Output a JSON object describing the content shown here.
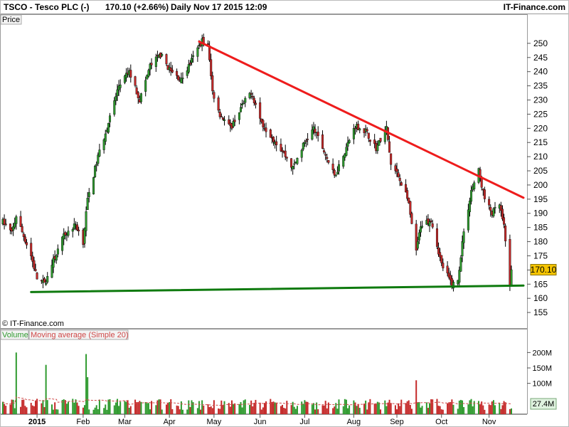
{
  "header": {
    "symbol": "TSCO - Tesco PLC (-)",
    "quote": "170.10 (+2.66%)",
    "period": "Daily",
    "timestamp": "Nov 17 2015 12:09",
    "brand": "IT-Finance.com"
  },
  "price_panel": {
    "label": "Price",
    "copyright": "© IT-Finance.com",
    "last_price_tag": "170.10"
  },
  "volume_panel": {
    "label_volume": "Volume",
    "label_ma": "Moving average (Simple 20)",
    "last_value_tag": "27.4M"
  },
  "colors": {
    "up": "#2e9a2e",
    "down": "#c42828",
    "resistance": "#ee1c1c",
    "support": "#0e7a0e",
    "price_tag": "#f5c400",
    "volume_tag": "#dff2df",
    "ma_line": "#d04848"
  },
  "chart_data": [
    {
      "type": "candlestick",
      "title": "TSCO - Tesco PLC (-)",
      "ylabel": "Price",
      "ylim": [
        151,
        256
      ],
      "yticks": [
        155,
        160,
        165,
        170,
        175,
        180,
        185,
        190,
        195,
        200,
        205,
        210,
        215,
        220,
        225,
        230,
        235,
        240,
        245,
        250
      ],
      "xtick_labels": [
        "2015",
        "Feb",
        "Mar",
        "Apr",
        "May",
        "Jun",
        "Jul",
        "Aug",
        "Sep",
        "Oct",
        "Nov"
      ],
      "xtick_dates": [
        "2015-01-02",
        "2015-02-02",
        "2015-03-02",
        "2015-04-01",
        "2015-05-01",
        "2015-06-01",
        "2015-07-01",
        "2015-08-03",
        "2015-09-01",
        "2015-10-01",
        "2015-11-02"
      ],
      "x_start": "2014-12-10",
      "x_end": "2015-11-17",
      "grid": false,
      "close_path": [
        [
          "2014-12-10",
          187
        ],
        [
          "2014-12-16",
          183
        ],
        [
          "2014-12-19",
          189
        ],
        [
          "2014-12-29",
          175
        ],
        [
          "2015-01-02",
          167
        ],
        [
          "2015-01-07",
          165
        ],
        [
          "2015-01-12",
          172
        ],
        [
          "2015-01-20",
          182
        ],
        [
          "2015-01-28",
          186
        ],
        [
          "2015-02-02",
          180
        ],
        [
          "2015-02-05",
          195
        ],
        [
          "2015-02-12",
          210
        ],
        [
          "2015-02-19",
          222
        ],
        [
          "2015-02-26",
          235
        ],
        [
          "2015-03-05",
          240
        ],
        [
          "2015-03-12",
          230
        ],
        [
          "2015-03-19",
          242
        ],
        [
          "2015-03-26",
          246
        ],
        [
          "2015-04-02",
          240
        ],
        [
          "2015-04-09",
          237
        ],
        [
          "2015-04-16",
          244
        ],
        [
          "2015-04-23",
          251
        ],
        [
          "2015-04-27",
          249
        ],
        [
          "2015-04-30",
          233
        ],
        [
          "2015-05-05",
          225
        ],
        [
          "2015-05-12",
          220
        ],
        [
          "2015-05-19",
          227
        ],
        [
          "2015-05-26",
          233
        ],
        [
          "2015-06-02",
          222
        ],
        [
          "2015-06-09",
          217
        ],
        [
          "2015-06-16",
          212
        ],
        [
          "2015-06-23",
          206
        ],
        [
          "2015-06-30",
          214
        ],
        [
          "2015-07-07",
          220
        ],
        [
          "2015-07-14",
          212
        ],
        [
          "2015-07-21",
          203
        ],
        [
          "2015-07-28",
          212
        ],
        [
          "2015-08-04",
          221
        ],
        [
          "2015-08-11",
          219
        ],
        [
          "2015-08-18",
          213
        ],
        [
          "2015-08-25",
          220
        ],
        [
          "2015-08-28",
          207
        ],
        [
          "2015-09-01",
          204
        ],
        [
          "2015-09-08",
          196
        ],
        [
          "2015-09-14",
          176
        ],
        [
          "2015-09-17",
          186
        ],
        [
          "2015-09-24",
          188
        ],
        [
          "2015-10-01",
          172
        ],
        [
          "2015-10-08",
          165
        ],
        [
          "2015-10-12",
          166
        ],
        [
          "2015-10-15",
          180
        ],
        [
          "2015-10-21",
          198
        ],
        [
          "2015-10-26",
          205
        ],
        [
          "2015-10-30",
          195
        ],
        [
          "2015-11-04",
          190
        ],
        [
          "2015-11-09",
          193
        ],
        [
          "2015-11-12",
          185
        ],
        [
          "2015-11-16",
          165
        ],
        [
          "2015-11-17",
          170.1
        ]
      ],
      "trendlines": [
        {
          "name": "resistance",
          "from": [
            "2015-04-21",
            250.6
          ],
          "to": [
            "2015-11-17",
            195.5
          ]
        },
        {
          "name": "support",
          "from": [
            "2014-12-29",
            162.2
          ],
          "to": [
            "2015-11-17",
            164.5
          ]
        }
      ],
      "last_price": 170.1
    },
    {
      "type": "bar",
      "ylabel": "Volume",
      "ylim": [
        0,
        240
      ],
      "yticks": [
        100,
        150,
        200
      ],
      "ytick_labels": [
        "100M",
        "150M",
        "200M"
      ],
      "series": [
        {
          "name": "Volume",
          "unit": "M",
          "typical": 40,
          "spikes": [
            [
              "2014-12-19",
              200
            ],
            [
              "2015-01-08",
              160
            ],
            [
              "2015-02-04",
              195
            ],
            [
              "2015-02-05",
              120
            ],
            [
              "2015-09-14",
              110
            ]
          ]
        },
        {
          "name": "Moving average (Simple 20)",
          "unit": "M",
          "approx": 30
        }
      ],
      "last_value": 27.4
    }
  ]
}
